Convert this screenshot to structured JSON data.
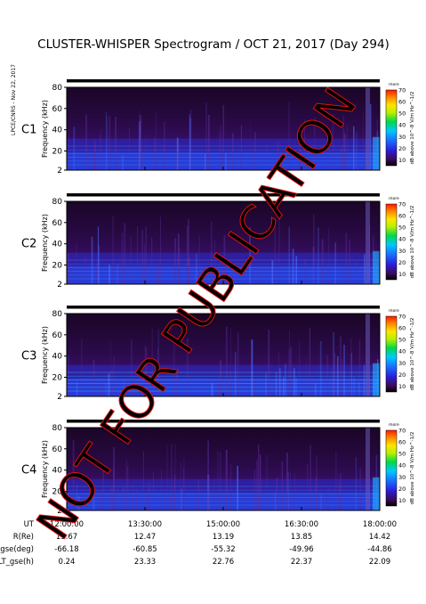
{
  "title": "CLUSTER-WHISPER Spectrogram / OCT 21, 2017 (Day 294)",
  "side_stamp": "LPCE/CNRS - Nov 22, 2017",
  "watermark": "NOT FOR PUBLICATION",
  "chart_data": {
    "type": "heatmap",
    "panels": [
      {
        "name": "C1",
        "label_color": "#000000"
      },
      {
        "name": "C2",
        "label_color": "#000000"
      },
      {
        "name": "C3",
        "label_color": "#27c23a"
      },
      {
        "name": "C4",
        "label_color": "#000000"
      }
    ],
    "ylabel": "Frequency (kHz)",
    "yticks": [
      2,
      20,
      40,
      60,
      80
    ],
    "ylim": [
      2,
      80
    ],
    "colorbar": {
      "label": "dB above 10^-8 V/m Hz^-1/2",
      "ticks": [
        10,
        20,
        30,
        40,
        50,
        60,
        70
      ],
      "range": [
        5,
        70
      ],
      "top_label": "more"
    },
    "xlim": [
      "12:00:00",
      "18:00:00"
    ],
    "xticks": [
      "12:00:00",
      "13:30:00",
      "15:00:00",
      "16:30:00",
      "18:00:00"
    ],
    "ephemeris": [
      {
        "label": "UT",
        "values": [
          "12:00:00",
          "13:30:00",
          "15:00:00",
          "16:30:00",
          "18:00:00"
        ]
      },
      {
        "label": "R(Re)",
        "values": [
          "11.67",
          "12.47",
          "13.19",
          "13.85",
          "14.42"
        ]
      },
      {
        "label": "Lat_gse(deg)",
        "values": [
          "-66.18",
          "-60.85",
          "-55.32",
          "-49.96",
          "-44.86"
        ]
      },
      {
        "label": "LT_gse(h)",
        "values": [
          "0.24",
          "23.33",
          "22.76",
          "22.37",
          "22.09"
        ]
      }
    ]
  }
}
